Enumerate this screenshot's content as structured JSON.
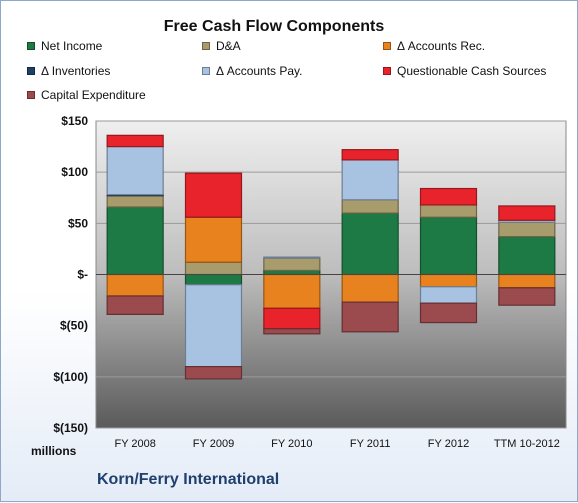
{
  "chart_data": {
    "type": "bar",
    "stacked": true,
    "title": "Free Cash Flow Components",
    "ylabel": "millions",
    "ylim": [
      -150,
      150
    ],
    "yticks": [
      150,
      100,
      50,
      0,
      -50,
      -100,
      -150
    ],
    "ytick_labels": [
      "$150",
      "$100",
      "$50",
      "$-",
      "$(50)",
      "$(100)",
      "$(150)"
    ],
    "categories": [
      "FY 2008",
      "FY 2009",
      "FY 2010",
      "FY 2011",
      "FY 2012",
      "TTM 10-2012"
    ],
    "grid": true,
    "legend_position": "top",
    "series": [
      {
        "name": "Net Income",
        "color": "#1e7a45",
        "values": [
          66,
          -10,
          4,
          60,
          56,
          37
        ]
      },
      {
        "name": "D&A",
        "color": "#a89c6c",
        "values": [
          11,
          12,
          12,
          13,
          12,
          14
        ]
      },
      {
        "name": "Δ Accounts Rec.",
        "color": "#e8821f",
        "values": [
          -21,
          44,
          -33,
          -27,
          -12,
          -13
        ]
      },
      {
        "name": "Δ Inventories",
        "color": "#1f3f66",
        "values": [
          1,
          0,
          0,
          0,
          0,
          0
        ]
      },
      {
        "name": "Δ Accounts Pay.",
        "color": "#a8c2e2",
        "values": [
          47,
          -80,
          1,
          39,
          -16,
          2
        ]
      },
      {
        "name": "Questionable Cash Sources",
        "color": "#e8232b",
        "values": [
          11,
          43,
          0,
          10,
          16,
          14
        ]
      },
      {
        "name": "Capital Expenditure",
        "color": "#9b4a4e",
        "values": [
          -18,
          -12,
          -5,
          -29,
          -19,
          -17
        ]
      }
    ],
    "hidden_negative_qcs": [
      0,
      0,
      -20,
      0,
      0,
      0
    ]
  },
  "footer": {
    "company": "Korn/Ferry International"
  }
}
